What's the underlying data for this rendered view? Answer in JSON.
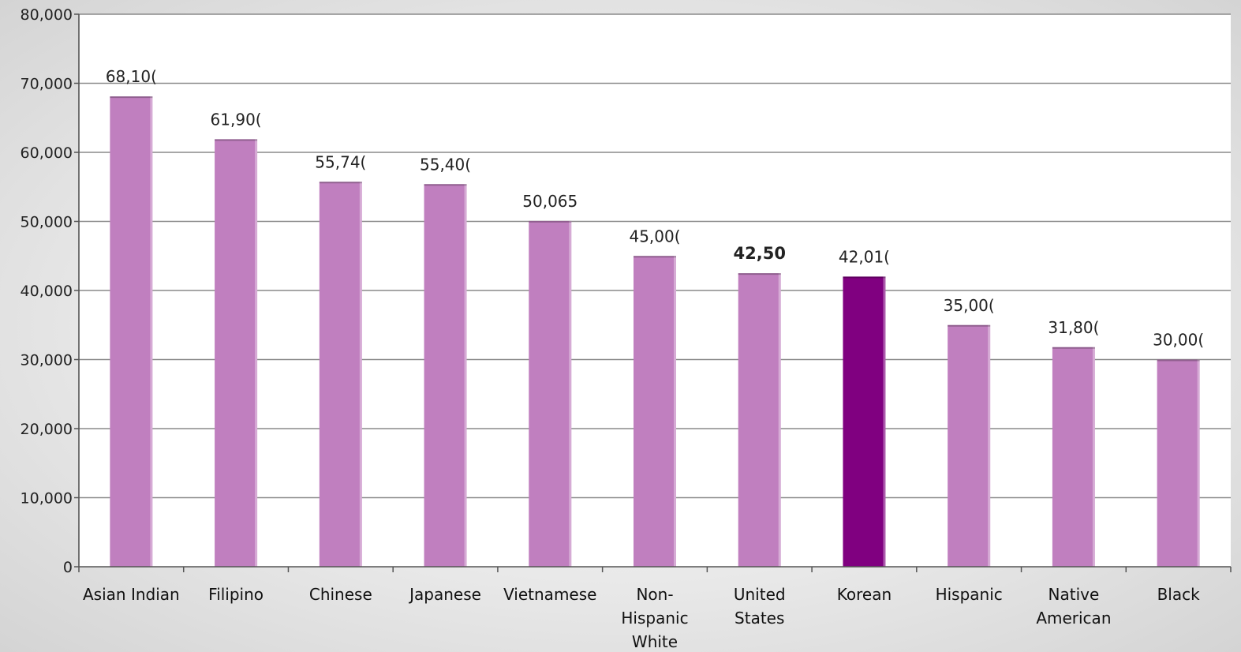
{
  "chart_data": {
    "type": "bar",
    "categories": [
      [
        "Asian Indian"
      ],
      [
        "Filipino"
      ],
      [
        "Chinese"
      ],
      [
        "Japanese"
      ],
      [
        "Vietnamese"
      ],
      [
        "Non-",
        "Hispanic",
        "White"
      ],
      [
        "United",
        "States"
      ],
      [
        "Korean"
      ],
      [
        "Hispanic"
      ],
      [
        "Native",
        "American"
      ],
      [
        "Black"
      ]
    ],
    "values": [
      68100,
      61900,
      55740,
      55400,
      50065,
      45000,
      42500,
      42010,
      35000,
      31800,
      30000
    ],
    "data_labels": [
      "68,10(",
      "61,90(",
      "55,74(",
      "55,40(",
      "50,065",
      "45,00(",
      "42,50",
      "42,01(",
      "35,00(",
      "31,80(",
      "30,00("
    ],
    "bold_label_index": 6,
    "highlight_index": 7,
    "ylim": [
      0,
      80000
    ],
    "yticks": [
      0,
      10000,
      20000,
      30000,
      40000,
      50000,
      60000,
      70000,
      80000
    ],
    "ytick_labels": [
      "0",
      "10,000",
      "20,000",
      "30,000",
      "40,000",
      "50,000",
      "60,000",
      "70,000",
      "80,000"
    ],
    "grid": true,
    "title": "",
    "xlabel": "",
    "ylabel": "",
    "colors": {
      "bar": "#c07fbf",
      "bar_highlight": "#800080",
      "grid": "#8a8a8a",
      "axis": "#555555",
      "plot_bg": "#ffffff"
    }
  }
}
